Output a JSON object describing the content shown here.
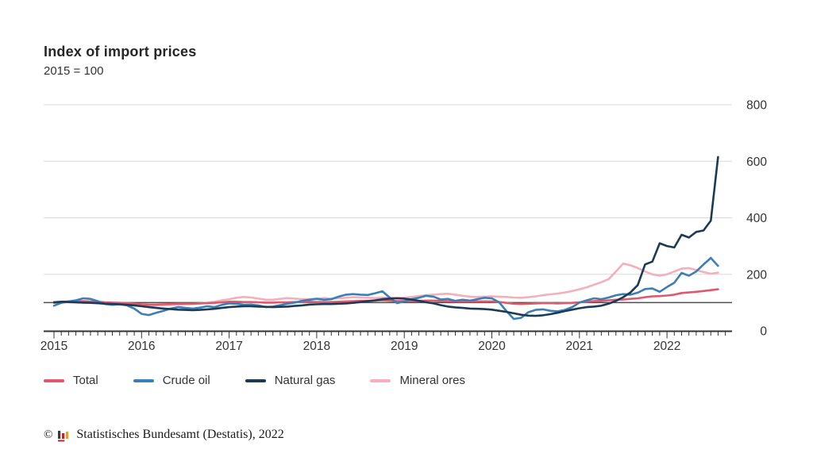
{
  "header": {
    "title": "Index of import prices",
    "subtitle": "2015 = 100"
  },
  "chart_data": {
    "type": "line",
    "title": "Index of import prices",
    "subtitle": "2015 = 100",
    "x_unit": "month",
    "x_start": "2015-01",
    "x_end": "2022-08",
    "xlabel": "",
    "ylabel": "",
    "ylim": [
      0,
      800
    ],
    "y_axis_side": "right",
    "y_tick_labels": [
      "0",
      "200",
      "400",
      "600",
      "800"
    ],
    "y_ticks": [
      0,
      200,
      400,
      600,
      800
    ],
    "baseline_value": 100,
    "grid": true,
    "x_year_labels": [
      "2015",
      "2016",
      "2017",
      "2018",
      "2019",
      "2020",
      "2021",
      "2022"
    ],
    "series": [
      {
        "name": "Mineral ores",
        "color": "#f3afba",
        "values": [
          101,
          101,
          101,
          100,
          100,
          99,
          97,
          96,
          95,
          93,
          92,
          91,
          90,
          89,
          90,
          91,
          92,
          93,
          94,
          95,
          97,
          99,
          103,
          108,
          112,
          117,
          120,
          118,
          114,
          110,
          110,
          113,
          116,
          114,
          112,
          112,
          114,
          116,
          114,
          115,
          117,
          119,
          118,
          117,
          116,
          117,
          118,
          117,
          117,
          120,
          123,
          126,
          128,
          130,
          131,
          128,
          124,
          121,
          120,
          121,
          122,
          121,
          120,
          118,
          117,
          119,
          122,
          126,
          129,
          132,
          136,
          141,
          147,
          154,
          163,
          172,
          183,
          210,
          238,
          232,
          222,
          210,
          200,
          195,
          200,
          210,
          220,
          222,
          215,
          208,
          202,
          206
        ]
      },
      {
        "name": "Total",
        "color": "#e0586c",
        "values": [
          102,
          103,
          104,
          105,
          105,
          104,
          103,
          101,
          100,
          99,
          98,
          96,
          94,
          93,
          93,
          94,
          95,
          96,
          96,
          96,
          97,
          98,
          99,
          101,
          103,
          103,
          102,
          102,
          101,
          100,
          100,
          101,
          101,
          102,
          102,
          103,
          102,
          102,
          102,
          103,
          104,
          105,
          106,
          106,
          107,
          108,
          107,
          105,
          105,
          106,
          106,
          107,
          107,
          106,
          105,
          104,
          104,
          104,
          104,
          104,
          104,
          102,
          99,
          96,
          95,
          96,
          97,
          98,
          98,
          97,
          98,
          99,
          101,
          103,
          105,
          106,
          108,
          110,
          111,
          113,
          115,
          119,
          122,
          123,
          125,
          128,
          134,
          136,
          138,
          141,
          144,
          147
        ]
      },
      {
        "name": "Crude oil",
        "color": "#3b7fb5",
        "values": [
          89,
          99,
          104,
          108,
          115,
          113,
          105,
          95,
          92,
          94,
          90,
          79,
          60,
          56,
          64,
          71,
          79,
          84,
          81,
          79,
          82,
          87,
          84,
          92,
          97,
          96,
          92,
          93,
          90,
          84,
          86,
          91,
          96,
          100,
          106,
          110,
          113,
          110,
          112,
          121,
          128,
          130,
          128,
          127,
          133,
          140,
          118,
          98,
          104,
          112,
          117,
          124,
          121,
          111,
          113,
          106,
          110,
          107,
          112,
          117,
          115,
          101,
          70,
          42,
          46,
          66,
          74,
          76,
          71,
          69,
          74,
          84,
          100,
          108,
          115,
          112,
          118,
          126,
          130,
          128,
          135,
          148,
          150,
          138,
          155,
          170,
          205,
          195,
          210,
          235,
          258,
          230
        ]
      },
      {
        "name": "Natural gas",
        "color": "#1b3a55",
        "values": [
          100,
          103,
          102,
          101,
          100,
          99,
          98,
          96,
          95,
          94,
          92,
          90,
          87,
          84,
          81,
          79,
          77,
          75,
          74,
          73,
          74,
          76,
          78,
          81,
          84,
          86,
          87,
          87,
          86,
          85,
          84,
          85,
          86,
          88,
          90,
          93,
          94,
          95,
          95,
          96,
          97,
          99,
          102,
          105,
          108,
          112,
          114,
          115,
          114,
          111,
          106,
          101,
          97,
          91,
          86,
          83,
          81,
          79,
          78,
          77,
          75,
          71,
          67,
          62,
          57,
          54,
          53,
          55,
          59,
          64,
          70,
          75,
          80,
          84,
          86,
          89,
          96,
          106,
          119,
          136,
          162,
          235,
          245,
          310,
          300,
          295,
          340,
          330,
          350,
          355,
          390,
          615
        ]
      }
    ],
    "legend_position": "bottom"
  },
  "legend": {
    "items": [
      {
        "label": "Total",
        "color": "#e0586c"
      },
      {
        "label": "Crude oil",
        "color": "#3b7fb5"
      },
      {
        "label": "Natural gas",
        "color": "#1b3a55"
      },
      {
        "label": "Mineral ores",
        "color": "#f3afba"
      }
    ]
  },
  "footer": {
    "copyright_symbol": "©",
    "logo": "destatis-mini-bar-chart-logo",
    "source_text": "Statistisches Bundesamt (Destatis), 2022"
  },
  "colors": {
    "grid_line": "#d9d9d9",
    "baseline_100": "#4d4d4d",
    "axis_line": "#333333",
    "text": "#333333"
  }
}
